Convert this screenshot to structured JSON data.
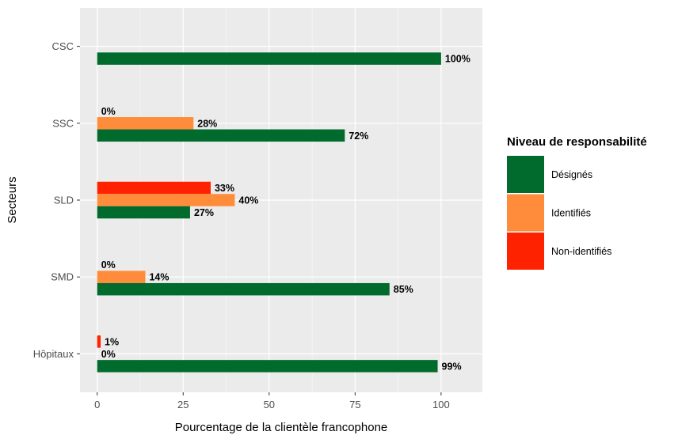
{
  "chart_data": {
    "type": "bar",
    "orientation": "horizontal",
    "xlabel": "Pourcentage de la clientèle francophone",
    "ylabel": "Secteurs",
    "xlim": [
      -5,
      112
    ],
    "xticks": [
      0,
      25,
      50,
      75,
      100
    ],
    "grid": true,
    "legend_position": "right",
    "legend_title": "Niveau de responsabilité",
    "categories": [
      "CSC",
      "SSC",
      "SLD",
      "SMD",
      "Hôpitaux"
    ],
    "series": [
      {
        "name": "Non-identifiés",
        "color": "#ff2200",
        "values": [
          null,
          0,
          33,
          0,
          1
        ],
        "labels": [
          "",
          "0%",
          "33%",
          "0%",
          "1%"
        ]
      },
      {
        "name": "Identifiés",
        "color": "#ff8c3a",
        "values": [
          null,
          28,
          40,
          14,
          0
        ],
        "labels": [
          "",
          "28%",
          "40%",
          "14%",
          "0%"
        ]
      },
      {
        "name": "Désignés",
        "color": "#006b2d",
        "values": [
          100,
          72,
          27,
          85,
          99
        ],
        "labels": [
          "100%",
          "72%",
          "27%",
          "85%",
          "99%"
        ]
      }
    ]
  }
}
